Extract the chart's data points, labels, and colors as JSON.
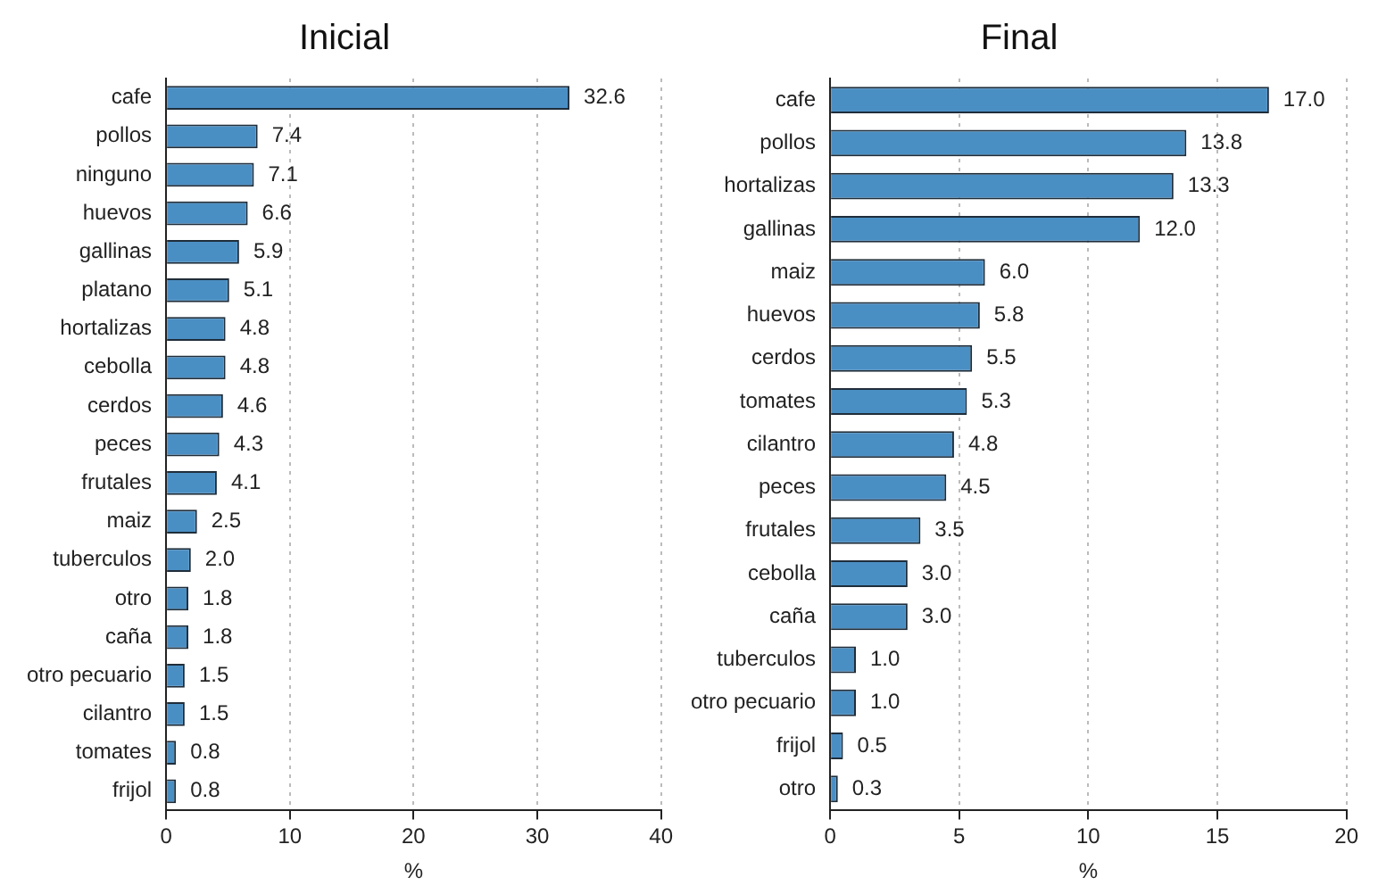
{
  "chart_data": [
    {
      "type": "bar",
      "orientation": "horizontal",
      "title": "Inicial",
      "xlabel": "%",
      "categories": [
        "cafe",
        "pollos",
        "ninguno",
        "huevos",
        "gallinas",
        "platano",
        "hortalizas",
        "cebolla",
        "cerdos",
        "peces",
        "frutales",
        "maiz",
        "tuberculos",
        "otro",
        "caña",
        "otro pecuario",
        "cilantro",
        "tomates",
        "frijol"
      ],
      "values": [
        32.6,
        7.4,
        7.1,
        6.6,
        5.9,
        5.1,
        4.8,
        4.8,
        4.6,
        4.3,
        4.1,
        2.5,
        2.0,
        1.8,
        1.8,
        1.5,
        1.5,
        0.8,
        0.8
      ],
      "value_labels": [
        "32.6",
        "7.4",
        "7.1",
        "6.6",
        "5.9",
        "5.1",
        "4.8",
        "4.8",
        "4.6",
        "4.3",
        "4.1",
        "2.5",
        "2.0",
        "1.8",
        "1.8",
        "1.5",
        "1.5",
        "0.8",
        "0.8"
      ],
      "color": "#4a8fc4",
      "xlim": [
        0,
        40
      ],
      "xticks": [
        0,
        10,
        20,
        30,
        40
      ],
      "grid": "x",
      "legend": false
    },
    {
      "type": "bar",
      "orientation": "horizontal",
      "title": "Final",
      "xlabel": "%",
      "categories": [
        "cafe",
        "pollos",
        "hortalizas",
        "gallinas",
        "maiz",
        "huevos",
        "cerdos",
        "tomates",
        "cilantro",
        "peces",
        "frutales",
        "cebolla",
        "caña",
        "tuberculos",
        "otro pecuario",
        "frijol",
        "otro"
      ],
      "values": [
        17.0,
        13.8,
        13.3,
        12.0,
        6.0,
        5.8,
        5.5,
        5.3,
        4.8,
        4.5,
        3.5,
        3.0,
        3.0,
        1.0,
        1.0,
        0.5,
        0.3
      ],
      "value_labels": [
        "17.0",
        "13.8",
        "13.3",
        "12.0",
        "6.0",
        "5.8",
        "5.5",
        "5.3",
        "4.8",
        "4.5",
        "3.5",
        "3.0",
        "3.0",
        "1.0",
        "1.0",
        "0.5",
        "0.3"
      ],
      "color": "#4a8fc4",
      "xlim": [
        0,
        20
      ],
      "xticks": [
        0,
        5,
        10,
        15,
        20
      ],
      "grid": "x",
      "legend": false
    }
  ]
}
